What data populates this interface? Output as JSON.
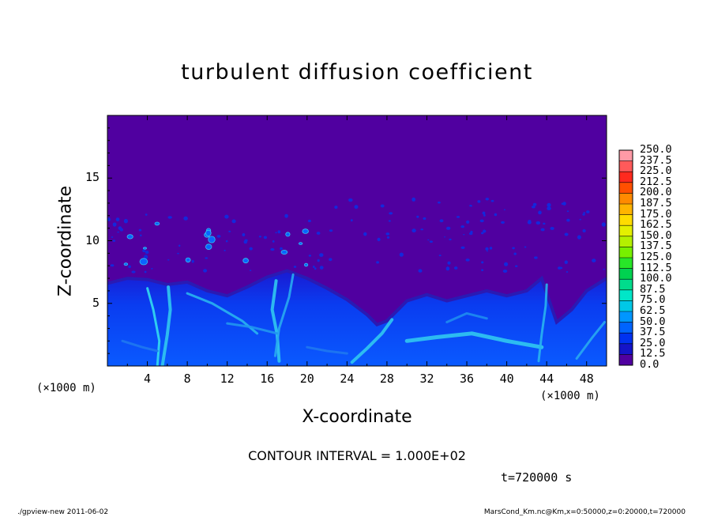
{
  "chart_data": {
    "type": "heatmap",
    "title": "turbulent diffusion coefficient",
    "xlabel": "X-coordinate",
    "ylabel": "Z-coordinate",
    "x_unit": "(×1000 m)",
    "y_unit": "(×1000 m)",
    "xlim": [
      0,
      50
    ],
    "ylim": [
      0,
      20
    ],
    "x_ticks": [
      "4",
      "8",
      "12",
      "16",
      "20",
      "24",
      "28",
      "32",
      "36",
      "40",
      "44",
      "48"
    ],
    "y_ticks": [
      "5",
      "10",
      "15"
    ],
    "colorbar": {
      "levels": [
        "250.0",
        "237.5",
        "225.0",
        "212.5",
        "200.0",
        "187.5",
        "175.0",
        "162.5",
        "150.0",
        "137.5",
        "125.0",
        "112.5",
        "100.0",
        "87.5",
        "75.0",
        "62.5",
        "50.0",
        "37.5",
        "25.0",
        "12.5",
        "0.0"
      ],
      "colors": [
        "#ff9aa6",
        "#ff5a5a",
        "#ff2a1e",
        "#ff5000",
        "#ff8a00",
        "#ffb400",
        "#ffdc00",
        "#e4f000",
        "#b4f000",
        "#78f000",
        "#28e628",
        "#00d250",
        "#00dc8c",
        "#00e6c8",
        "#00c8e6",
        "#0096ff",
        "#0064ff",
        "#0032f0",
        "#1414c8",
        "#5000a0"
      ]
    },
    "boundary_layer_top_km": [
      [
        0,
        6.6
      ],
      [
        2,
        7.0
      ],
      [
        4,
        6.9
      ],
      [
        6,
        6.5
      ],
      [
        8,
        6.7
      ],
      [
        10,
        6.0
      ],
      [
        12,
        5.6
      ],
      [
        14,
        6.3
      ],
      [
        16,
        7.1
      ],
      [
        18,
        7.6
      ],
      [
        20,
        7.0
      ],
      [
        22,
        6.2
      ],
      [
        24,
        5.3
      ],
      [
        26,
        4.1
      ],
      [
        27,
        3.3
      ],
      [
        28,
        3.6
      ],
      [
        30,
        5.2
      ],
      [
        32,
        5.7
      ],
      [
        34,
        5.2
      ],
      [
        36,
        5.6
      ],
      [
        38,
        6.0
      ],
      [
        40,
        5.6
      ],
      [
        42,
        6.0
      ],
      [
        43.5,
        7.0
      ],
      [
        44,
        5.8
      ],
      [
        45,
        3.5
      ],
      [
        46.5,
        4.5
      ],
      [
        48,
        6.0
      ],
      [
        50,
        7.0
      ]
    ]
  },
  "annotations": {
    "contour_interval": "CONTOUR INTERVAL = 1.000E+02",
    "time": "t=720000 s"
  },
  "footer": {
    "left": "./gpview-new  2011-06-02",
    "right": "MarsCond_Km.nc@Km,x=0:50000,z=0:20000,t=720000"
  }
}
